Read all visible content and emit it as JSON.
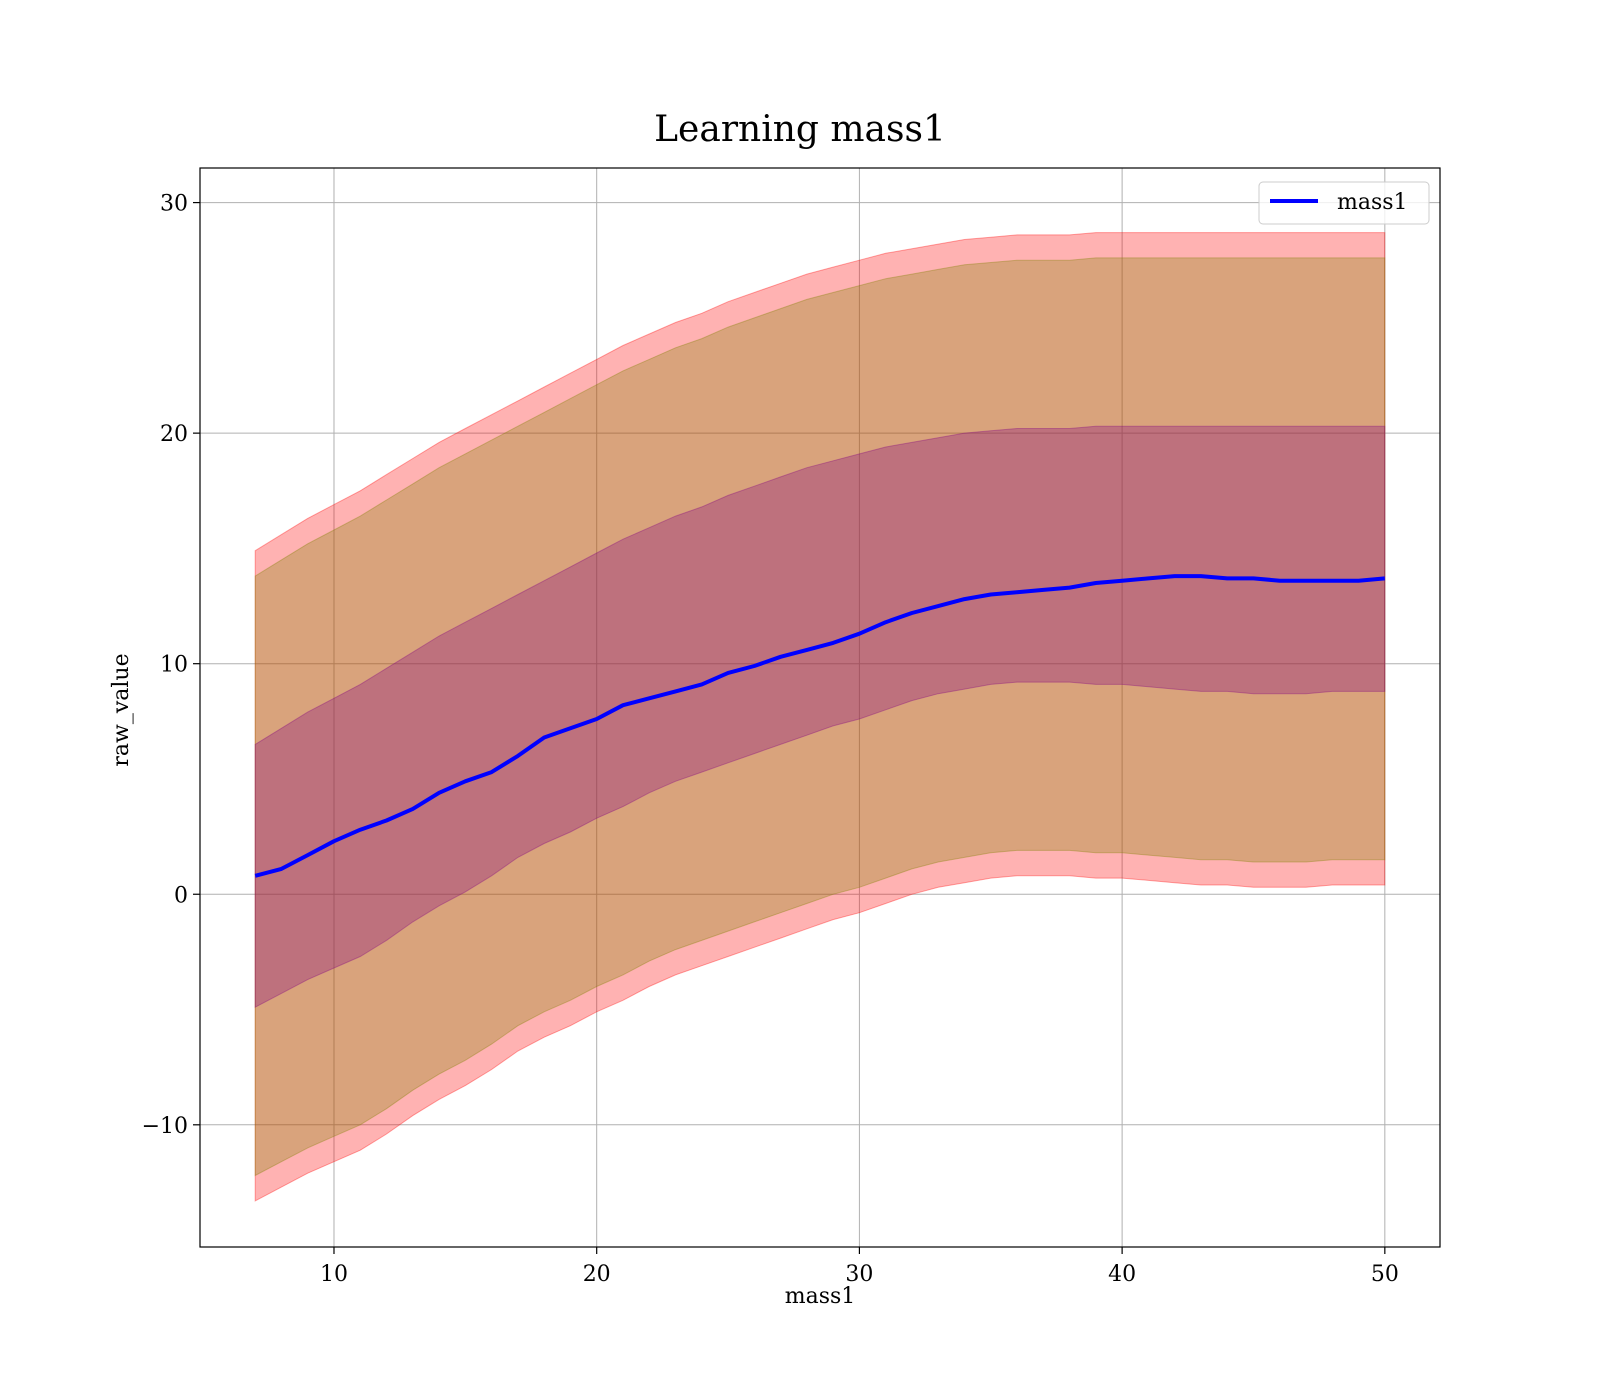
{
  "chart_data": {
    "type": "line",
    "title": "Learning mass1",
    "xlabel": "mass1",
    "ylabel": "raw_value",
    "xlim": [
      4.9,
      52.1
    ],
    "ylim": [
      -15.3,
      31.5
    ],
    "xticks": [
      10,
      20,
      30,
      40,
      50
    ],
    "xtick_labels": [
      "10",
      "20",
      "30",
      "40",
      "50"
    ],
    "yticks": [
      -10,
      0,
      10,
      20,
      30
    ],
    "ytick_labels": [
      "−10",
      "0",
      "10",
      "20",
      "30"
    ],
    "grid": true,
    "legend": {
      "position": "top-right",
      "entries": [
        "mass1"
      ]
    },
    "x": [
      7,
      8,
      9,
      10,
      11,
      12,
      13,
      14,
      15,
      16,
      17,
      18,
      19,
      20,
      21,
      22,
      23,
      24,
      25,
      26,
      27,
      28,
      29,
      30,
      31,
      32,
      33,
      34,
      35,
      36,
      37,
      38,
      39,
      40,
      41,
      42,
      43,
      44,
      45,
      46,
      47,
      48,
      49,
      50
    ],
    "series": [
      {
        "name": "mass1",
        "color": "#0000ff",
        "values": [
          0.8,
          1.1,
          1.7,
          2.3,
          2.8,
          3.2,
          3.7,
          4.4,
          4.9,
          5.3,
          6.0,
          6.8,
          7.2,
          7.6,
          8.2,
          8.5,
          8.8,
          9.1,
          9.6,
          9.9,
          10.3,
          10.6,
          10.9,
          11.3,
          11.8,
          12.2,
          12.5,
          12.8,
          13.0,
          13.1,
          13.2,
          13.3,
          13.5,
          13.6,
          13.7,
          13.8,
          13.8,
          13.7,
          13.7,
          13.6,
          13.6,
          13.6,
          13.6,
          13.7
        ]
      }
    ],
    "bands": [
      {
        "color": "#ff0000",
        "opacity": 0.3,
        "lower": [
          -13.3,
          -12.7,
          -12.1,
          -11.6,
          -11.1,
          -10.4,
          -9.6,
          -8.9,
          -8.3,
          -7.6,
          -6.8,
          -6.2,
          -5.7,
          -5.1,
          -4.6,
          -4.0,
          -3.5,
          -3.1,
          -2.7,
          -2.3,
          -1.9,
          -1.5,
          -1.1,
          -0.8,
          -0.4,
          0.0,
          0.3,
          0.5,
          0.7,
          0.8,
          0.8,
          0.8,
          0.7,
          0.7,
          0.6,
          0.5,
          0.4,
          0.4,
          0.3,
          0.3,
          0.3,
          0.4,
          0.4,
          0.4
        ],
        "upper": [
          14.9,
          15.6,
          16.3,
          16.9,
          17.5,
          18.2,
          18.9,
          19.6,
          20.2,
          20.8,
          21.4,
          22.0,
          22.6,
          23.2,
          23.8,
          24.3,
          24.8,
          25.2,
          25.7,
          26.1,
          26.5,
          26.9,
          27.2,
          27.5,
          27.8,
          28.0,
          28.2,
          28.4,
          28.5,
          28.6,
          28.6,
          28.6,
          28.7,
          28.7,
          28.7,
          28.7,
          28.7,
          28.7,
          28.7,
          28.7,
          28.7,
          28.7,
          28.7,
          28.7
        ]
      },
      {
        "color": "#808000",
        "opacity": 0.3,
        "lower": [
          -12.2,
          -11.6,
          -11.0,
          -10.5,
          -10.0,
          -9.3,
          -8.5,
          -7.8,
          -7.2,
          -6.5,
          -5.7,
          -5.1,
          -4.6,
          -4.0,
          -3.5,
          -2.9,
          -2.4,
          -2.0,
          -1.6,
          -1.2,
          -0.8,
          -0.4,
          0.0,
          0.3,
          0.7,
          1.1,
          1.4,
          1.6,
          1.8,
          1.9,
          1.9,
          1.9,
          1.8,
          1.8,
          1.7,
          1.6,
          1.5,
          1.5,
          1.4,
          1.4,
          1.4,
          1.5,
          1.5,
          1.5
        ],
        "upper": [
          13.8,
          14.5,
          15.2,
          15.8,
          16.4,
          17.1,
          17.8,
          18.5,
          19.1,
          19.7,
          20.3,
          20.9,
          21.5,
          22.1,
          22.7,
          23.2,
          23.7,
          24.1,
          24.6,
          25.0,
          25.4,
          25.8,
          26.1,
          26.4,
          26.7,
          26.9,
          27.1,
          27.3,
          27.4,
          27.5,
          27.5,
          27.5,
          27.6,
          27.6,
          27.6,
          27.6,
          27.6,
          27.6,
          27.6,
          27.6,
          27.6,
          27.6,
          27.6,
          27.6
        ]
      },
      {
        "color": "#800080",
        "opacity": 0.3,
        "lower": [
          -4.9,
          -4.3,
          -3.7,
          -3.2,
          -2.7,
          -2.0,
          -1.2,
          -0.5,
          0.1,
          0.8,
          1.6,
          2.2,
          2.7,
          3.3,
          3.8,
          4.4,
          4.9,
          5.3,
          5.7,
          6.1,
          6.5,
          6.9,
          7.3,
          7.6,
          8.0,
          8.4,
          8.7,
          8.9,
          9.1,
          9.2,
          9.2,
          9.2,
          9.1,
          9.1,
          9.0,
          8.9,
          8.8,
          8.8,
          8.7,
          8.7,
          8.7,
          8.8,
          8.8,
          8.8
        ],
        "upper": [
          6.5,
          7.2,
          7.9,
          8.5,
          9.1,
          9.8,
          10.5,
          11.2,
          11.8,
          12.4,
          13.0,
          13.6,
          14.2,
          14.8,
          15.4,
          15.9,
          16.4,
          16.8,
          17.3,
          17.7,
          18.1,
          18.5,
          18.8,
          19.1,
          19.4,
          19.6,
          19.8,
          20.0,
          20.1,
          20.2,
          20.2,
          20.2,
          20.3,
          20.3,
          20.3,
          20.3,
          20.3,
          20.3,
          20.3,
          20.3,
          20.3,
          20.3,
          20.3,
          20.3
        ]
      }
    ]
  }
}
